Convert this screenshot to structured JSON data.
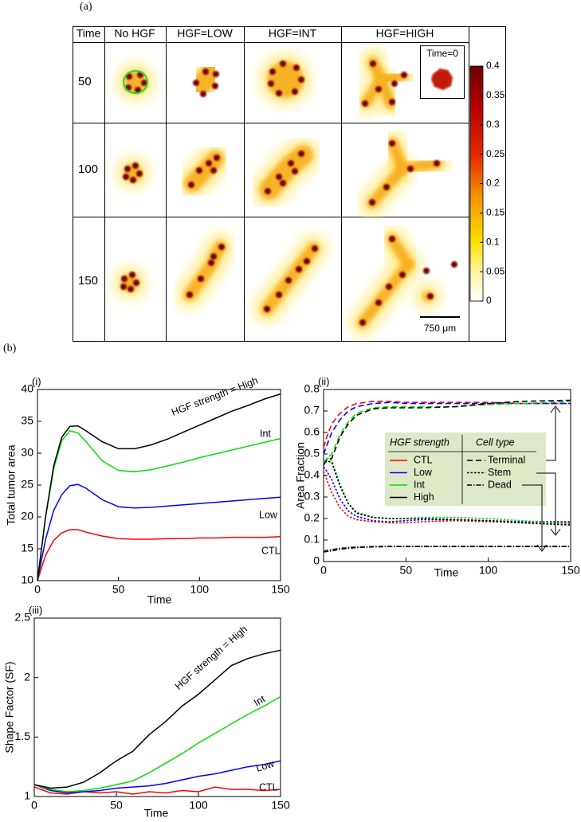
{
  "panel_a": {
    "label": "(a)",
    "columns": [
      "Time",
      "No HGF",
      "HGF=LOW",
      "HGF=INT",
      "HGF=HIGH"
    ],
    "rows": [
      "50",
      "100",
      "150"
    ],
    "inset_label": "Time=0",
    "scale_bar": "750 μm",
    "colorbar": {
      "range": [
        0,
        0.4
      ],
      "ticks": [
        0,
        0.05,
        0.1,
        0.15,
        0.2,
        0.25,
        0.3,
        0.35,
        0.4
      ]
    }
  },
  "panel_b_label": "(b)",
  "chart_data": [
    {
      "type": "line",
      "label": "(i)",
      "x_label": "Time",
      "y_label": "Total tumor area",
      "xlim": [
        0,
        150
      ],
      "xticks": [
        0,
        50,
        100,
        150
      ],
      "ylim": [
        10,
        40
      ],
      "yticks": [
        10,
        15,
        20,
        25,
        30,
        35,
        40
      ],
      "x": [
        0,
        5,
        10,
        15,
        20,
        25,
        30,
        40,
        50,
        60,
        70,
        80,
        90,
        100,
        110,
        120,
        130,
        140,
        150
      ],
      "series": [
        {
          "name": "CTL",
          "color": "#ff0000",
          "values": [
            10,
            14,
            16.3,
            17.5,
            18.0,
            18.0,
            17.6,
            17,
            16.6,
            16.5,
            16.5,
            16.6,
            16.6,
            16.7,
            16.7,
            16.8,
            16.8,
            16.8,
            16.9
          ]
        },
        {
          "name": "Low",
          "color": "#0000ff",
          "values": [
            10,
            16.5,
            21,
            23.5,
            24.9,
            25.1,
            24.5,
            22.7,
            21.6,
            21.4,
            21.5,
            21.7,
            21.9,
            22.1,
            22.3,
            22.5,
            22.7,
            22.9,
            23.1
          ]
        },
        {
          "name": "Int",
          "color": "#00e000",
          "values": [
            10,
            20,
            27.5,
            32,
            33.5,
            33.2,
            31.8,
            28.8,
            27.3,
            27.1,
            27.4,
            28,
            28.6,
            29.3,
            29.9,
            30.5,
            31.1,
            31.7,
            32.3
          ]
        },
        {
          "name": "HGF strength = High",
          "color": "#000000",
          "values": [
            10,
            20,
            28,
            32.5,
            34.2,
            34.3,
            33.5,
            31.8,
            30.7,
            30.7,
            31.3,
            32.2,
            33.3,
            34.4,
            35.5,
            36.6,
            37.5,
            38.5,
            39.3
          ]
        }
      ]
    },
    {
      "type": "line",
      "label": "(ii)",
      "x_label": "Time",
      "y_label": "Area Fraction",
      "xlim": [
        0,
        150
      ],
      "xticks": [
        0,
        50,
        100,
        150
      ],
      "ylim": [
        0,
        0.8
      ],
      "yticks": [
        0,
        0.1,
        0.2,
        0.3,
        0.4,
        0.5,
        0.6,
        0.7,
        0.8
      ],
      "legend_titles": [
        "HGF strength",
        "Cell type"
      ],
      "cell_types": [
        {
          "name": "Terminal",
          "dash": "7 4"
        },
        {
          "name": "Stem",
          "dash": "2.5 2"
        },
        {
          "name": "Dead",
          "dash": "6 2 1.5 2"
        }
      ],
      "x": [
        0,
        2,
        5,
        10,
        15,
        20,
        30,
        40,
        50,
        60,
        80,
        100,
        120,
        150
      ],
      "series": [
        {
          "name": "CTL",
          "color": "#ff0000",
          "values": [
            [
              0.53,
              0.58,
              0.64,
              0.69,
              0.72,
              0.735,
              0.745,
              0.745,
              0.74,
              0.74,
              0.74,
              0.74,
              0.735,
              0.735
            ],
            [
              0.42,
              0.38,
              0.32,
              0.25,
              0.21,
              0.195,
              0.185,
              0.18,
              0.18,
              0.185,
              0.19,
              0.185,
              0.18,
              0.18
            ],
            [
              0.05,
              0.052,
              0.056,
              0.062,
              0.066,
              0.068,
              0.07,
              0.07,
              0.07,
              0.07,
              0.07,
              0.07,
              0.07,
              0.07
            ]
          ]
        },
        {
          "name": "Low",
          "color": "#0000ff",
          "values": [
            [
              0.5,
              0.54,
              0.6,
              0.66,
              0.7,
              0.72,
              0.735,
              0.74,
              0.735,
              0.735,
              0.735,
              0.735,
              0.735,
              0.735
            ],
            [
              0.44,
              0.42,
              0.38,
              0.29,
              0.235,
              0.21,
              0.19,
              0.185,
              0.19,
              0.195,
              0.195,
              0.19,
              0.185,
              0.185
            ],
            [
              0.048,
              0.05,
              0.054,
              0.06,
              0.064,
              0.067,
              0.069,
              0.07,
              0.07,
              0.07,
              0.07,
              0.07,
              0.07,
              0.07
            ]
          ]
        },
        {
          "name": "Int",
          "color": "#00e000",
          "values": [
            [
              0.46,
              0.48,
              0.5,
              0.59,
              0.65,
              0.69,
              0.715,
              0.72,
              0.72,
              0.72,
              0.72,
              0.73,
              0.735,
              0.745
            ],
            [
              0.45,
              0.48,
              0.47,
              0.36,
              0.27,
              0.23,
              0.205,
              0.2,
              0.2,
              0.205,
              0.205,
              0.2,
              0.19,
              0.175
            ],
            [
              0.046,
              0.048,
              0.052,
              0.058,
              0.063,
              0.066,
              0.069,
              0.07,
              0.07,
              0.07,
              0.07,
              0.07,
              0.07,
              0.07
            ]
          ]
        },
        {
          "name": "High",
          "color": "#000000",
          "values": [
            [
              0.45,
              0.47,
              0.48,
              0.58,
              0.64,
              0.68,
              0.71,
              0.715,
              0.715,
              0.715,
              0.72,
              0.735,
              0.745,
              0.75
            ],
            [
              0.45,
              0.47,
              0.46,
              0.35,
              0.27,
              0.225,
              0.205,
              0.2,
              0.2,
              0.2,
              0.195,
              0.19,
              0.18,
              0.17
            ],
            [
              0.045,
              0.047,
              0.05,
              0.057,
              0.062,
              0.065,
              0.068,
              0.07,
              0.07,
              0.07,
              0.07,
              0.07,
              0.07,
              0.07
            ]
          ]
        }
      ]
    },
    {
      "type": "line",
      "label": "(iii)",
      "x_label": "Time",
      "y_label": "Shape Factor (SF)",
      "xlim": [
        0,
        150
      ],
      "xticks": [
        0,
        50,
        100,
        150
      ],
      "ylim": [
        1,
        2.5
      ],
      "yticks": [
        1,
        1.5,
        2,
        2.5
      ],
      "x": [
        0,
        10,
        20,
        30,
        40,
        50,
        60,
        70,
        80,
        90,
        100,
        110,
        120,
        130,
        140,
        150
      ],
      "series": [
        {
          "name": "CTL",
          "color": "#ff0000",
          "values": [
            1.08,
            1.03,
            1.02,
            1.04,
            1.03,
            1.04,
            1.02,
            1.04,
            1.03,
            1.05,
            1.04,
            1.08,
            1.06,
            1.06,
            1.05,
            1.06
          ]
        },
        {
          "name": "Low",
          "color": "#0000ff",
          "values": [
            1.1,
            1.05,
            1.03,
            1.04,
            1.05,
            1.07,
            1.08,
            1.09,
            1.11,
            1.14,
            1.17,
            1.19,
            1.22,
            1.25,
            1.27,
            1.3
          ]
        },
        {
          "name": "Int",
          "color": "#00e000",
          "values": [
            1.1,
            1.06,
            1.04,
            1.05,
            1.07,
            1.1,
            1.13,
            1.2,
            1.28,
            1.36,
            1.45,
            1.53,
            1.61,
            1.69,
            1.76,
            1.84
          ]
        },
        {
          "name": "HGF strength = High",
          "color": "#000000",
          "values": [
            1.1,
            1.07,
            1.08,
            1.12,
            1.2,
            1.3,
            1.38,
            1.52,
            1.63,
            1.76,
            1.86,
            1.98,
            2.1,
            2.16,
            2.2,
            2.23
          ]
        }
      ]
    }
  ]
}
